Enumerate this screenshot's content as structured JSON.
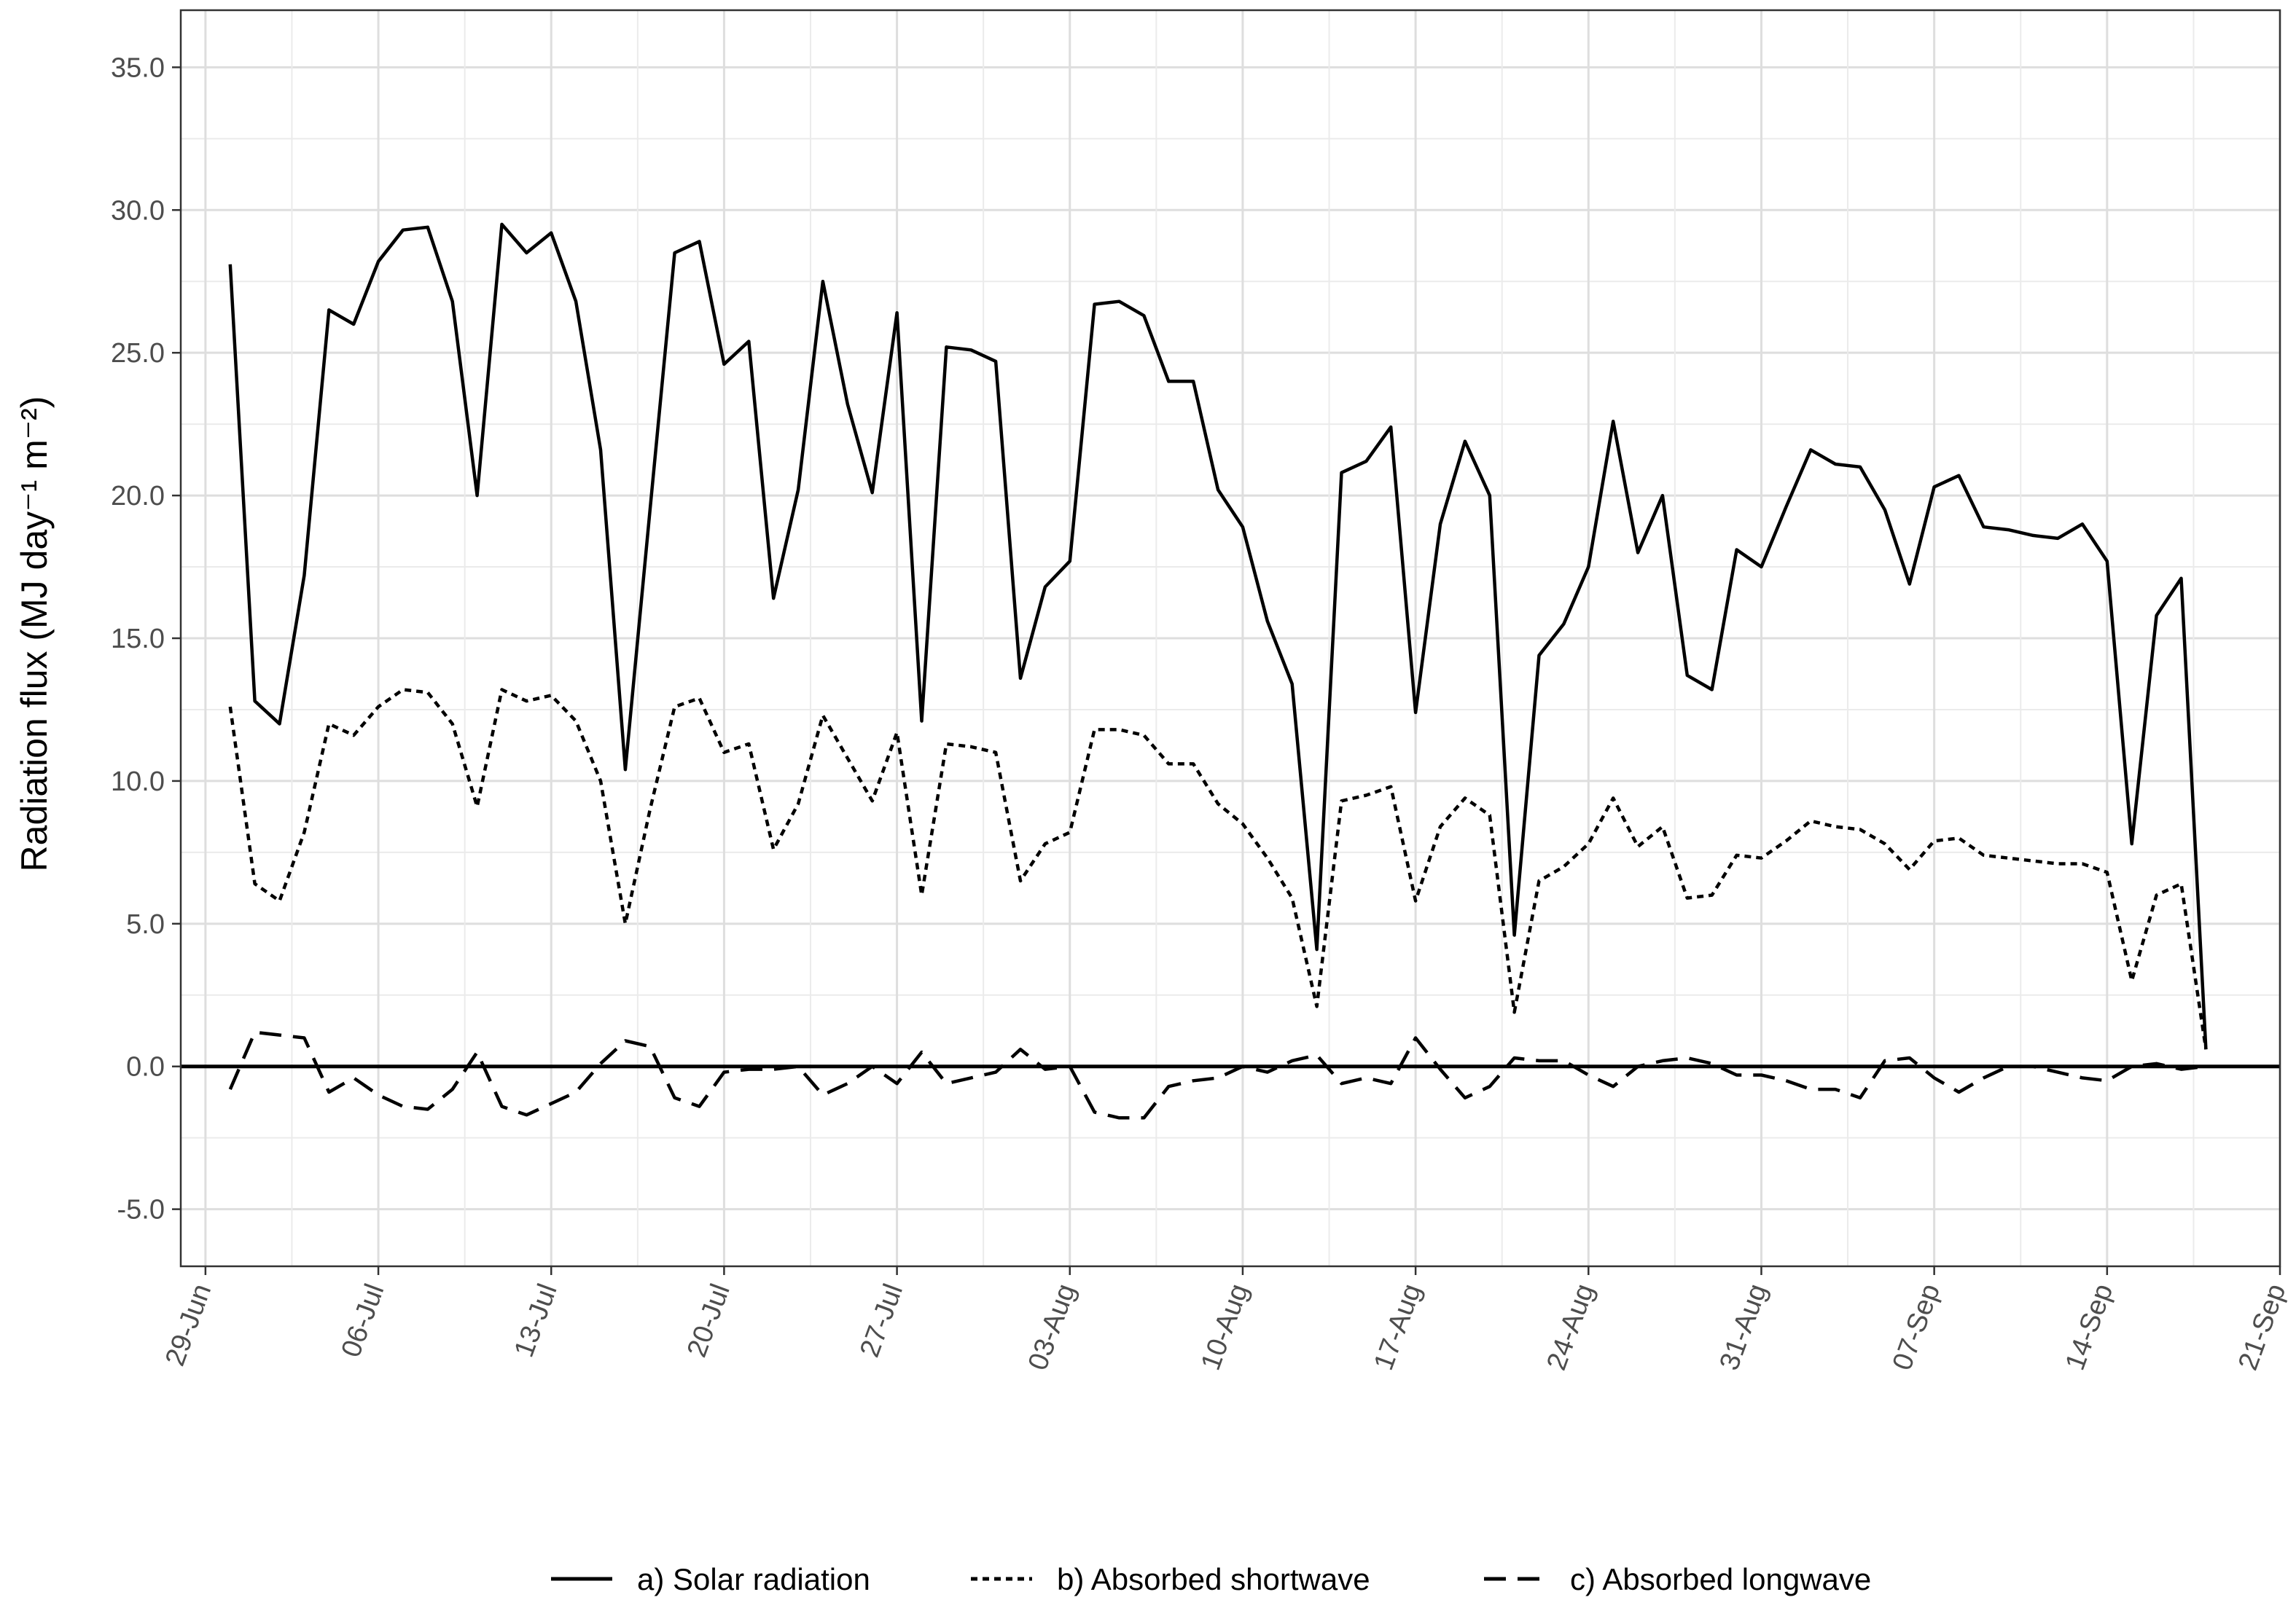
{
  "chart_data": {
    "type": "line",
    "title": "",
    "xlabel": "",
    "ylabel": "Radiation flux (MJ day⁻¹ m⁻²)",
    "ylim": [
      -7.0,
      37.0
    ],
    "xlim": [
      "2015-06-28",
      "2015-09-21"
    ],
    "yticks": [
      -5.0,
      0.0,
      5.0,
      10.0,
      15.0,
      20.0,
      25.0,
      30.0,
      35.0
    ],
    "ytick_labels": [
      "-5.0",
      "0.0",
      "5.0",
      "10.0",
      "15.0",
      "20.0",
      "25.0",
      "30.0",
      "35.0"
    ],
    "xticks": [
      "2015-06-29",
      "2015-07-06",
      "2015-07-13",
      "2015-07-20",
      "2015-07-27",
      "2015-08-03",
      "2015-08-10",
      "2015-08-17",
      "2015-08-24",
      "2015-08-31",
      "2015-09-07",
      "2015-09-14",
      "2015-09-21"
    ],
    "xtick_labels": [
      "29-Jun",
      "06-Jul",
      "13-Jul",
      "20-Jul",
      "27-Jul",
      "03-Aug",
      "10-Aug",
      "17-Aug",
      "24-Aug",
      "31-Aug",
      "07-Sep",
      "14-Sep",
      "21-Sep"
    ],
    "x_start_date": "2015-06-30",
    "x_step_days": 1,
    "grid": true,
    "zero_line": true,
    "legend_position": "bottom",
    "series": [
      {
        "name": "a) Solar radiation",
        "linestyle": "solid",
        "color": "#000000",
        "values": [
          28.1,
          12.8,
          12.0,
          17.2,
          26.5,
          26.0,
          28.2,
          29.3,
          29.4,
          26.8,
          20.0,
          29.5,
          28.5,
          29.2,
          26.8,
          21.6,
          10.4,
          19.5,
          28.5,
          28.9,
          24.6,
          25.4,
          16.4,
          20.2,
          27.5,
          23.2,
          20.1,
          26.4,
          12.1,
          25.2,
          25.1,
          24.7,
          13.6,
          16.8,
          17.7,
          26.7,
          26.8,
          26.3,
          24.0,
          24.0,
          20.2,
          18.9,
          15.6,
          13.4,
          4.1,
          20.8,
          21.2,
          22.4,
          12.4,
          19.0,
          21.9,
          20.0,
          4.6,
          14.4,
          15.5,
          17.5,
          22.6,
          18.0,
          20.0,
          13.7,
          13.2,
          18.1,
          17.5,
          19.6,
          21.6,
          21.1,
          21.0,
          19.5,
          16.9,
          20.3,
          20.7,
          18.9,
          18.8,
          18.6,
          18.5,
          19.0,
          17.7,
          7.8,
          15.8,
          17.1,
          0.6
        ]
      },
      {
        "name": "b) Absorbed shortwave",
        "linestyle": "dotted",
        "color": "#000000",
        "values": [
          12.6,
          6.4,
          5.8,
          8.2,
          12.0,
          11.6,
          12.6,
          13.2,
          13.1,
          12.0,
          9.1,
          13.2,
          12.8,
          13.0,
          12.1,
          10.0,
          5.0,
          9.0,
          12.6,
          12.9,
          11.0,
          11.3,
          7.6,
          9.2,
          12.3,
          10.8,
          9.3,
          11.7,
          6.0,
          11.3,
          11.2,
          11.0,
          6.5,
          7.8,
          8.2,
          11.8,
          11.8,
          11.6,
          10.6,
          10.6,
          9.2,
          8.5,
          7.3,
          5.9,
          2.1,
          9.3,
          9.5,
          9.8,
          5.8,
          8.4,
          9.4,
          8.8,
          1.9,
          6.5,
          7.0,
          7.8,
          9.4,
          7.7,
          8.4,
          5.9,
          6.0,
          7.4,
          7.3,
          7.9,
          8.6,
          8.4,
          8.3,
          7.8,
          6.9,
          7.9,
          8.0,
          7.4,
          7.3,
          7.2,
          7.1,
          7.1,
          6.8,
          3.0,
          6.0,
          6.4,
          0.6
        ]
      },
      {
        "name": "c) Absorbed longwave",
        "linestyle": "dashed",
        "color": "#000000",
        "values": [
          -0.8,
          1.2,
          1.1,
          1.0,
          -0.9,
          -0.4,
          -1.0,
          -1.4,
          -1.5,
          -0.8,
          0.5,
          -1.4,
          -1.7,
          -1.3,
          -0.9,
          0.1,
          0.9,
          0.7,
          -1.1,
          -1.4,
          -0.2,
          -0.1,
          -0.1,
          0.0,
          -1.0,
          -0.6,
          0.0,
          -0.6,
          0.5,
          -0.6,
          -0.4,
          -0.2,
          0.6,
          -0.1,
          0.0,
          -1.6,
          -1.8,
          -1.8,
          -0.7,
          -0.5,
          -0.4,
          0.0,
          -0.2,
          0.2,
          0.4,
          -0.6,
          -0.4,
          -0.6,
          1.0,
          -0.1,
          -1.1,
          -0.7,
          0.3,
          0.2,
          0.2,
          -0.3,
          -0.7,
          0.0,
          0.2,
          0.3,
          0.1,
          -0.3,
          -0.3,
          -0.5,
          -0.8,
          -0.8,
          -1.1,
          0.2,
          0.3,
          -0.4,
          -0.9,
          -0.4,
          0.0,
          0.0,
          -0.2,
          -0.4,
          -0.5,
          0.0,
          0.1,
          -0.1,
          0.0
        ]
      }
    ]
  }
}
